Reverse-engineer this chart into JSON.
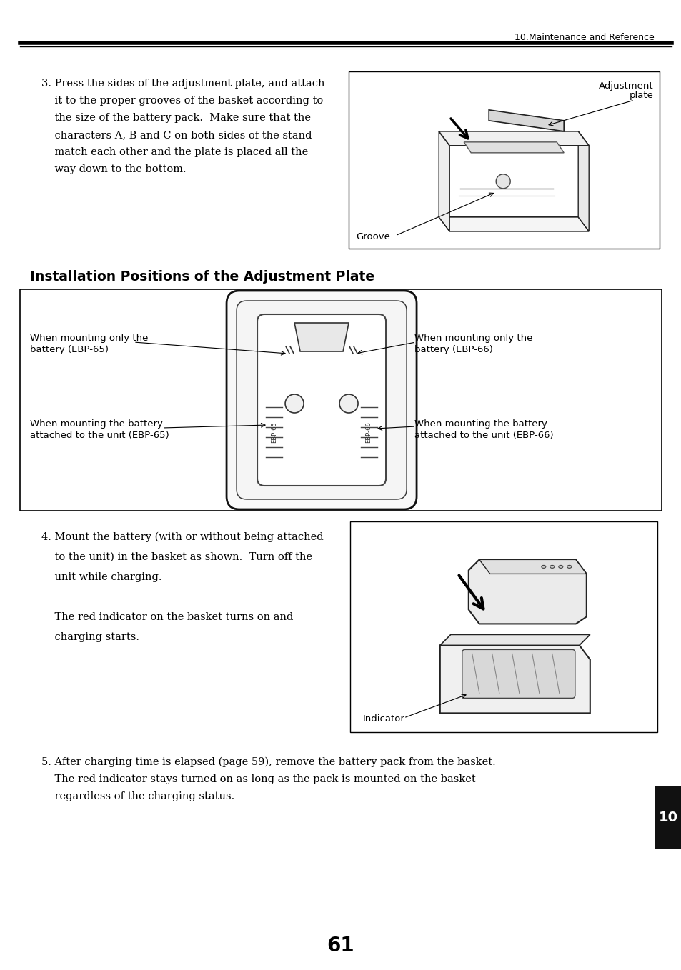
{
  "page_number": "61",
  "header_text": "10.Maintenance and Reference",
  "bg_color": "#ffffff",
  "text_color": "#000000",
  "section3_lines": [
    "3. Press the sides of the adjustment plate, and attach",
    "    it to the proper grooves of the basket according to",
    "    the size of the battery pack.  Make sure that the",
    "    characters A, B and C on both sides of the stand",
    "    match each other and the plate is placed all the",
    "    way down to the bottom."
  ],
  "section_heading": "Installation Positions of the Adjustment Plate",
  "section4_lines": [
    "4. Mount the battery (with or without being attached",
    "    to the unit) in the basket as shown.  Turn off the",
    "    unit while charging.",
    "",
    "    The red indicator on the basket turns on and",
    "    charging starts."
  ],
  "section5_lines": [
    "5. After charging time is elapsed (page 59), remove the battery pack from the basket.",
    "    The red indicator stays turned on as long as the pack is mounted on the basket",
    "    regardless of the charging status."
  ],
  "indicator_label": "Indicator",
  "groove_label": "Groove",
  "adjustment_plate_label1": "Adjustment",
  "adjustment_plate_label2": "plate",
  "tab_label": "10",
  "tab_color": "#111111",
  "lbl_when_only_65_1": "When mounting only the",
  "lbl_when_only_65_2": "battery (EBP-65)",
  "lbl_when_attached_65_1": "When mounting the battery",
  "lbl_when_attached_65_2": "attached to the unit (EBP-65)",
  "lbl_when_only_66_1": "When mounting only the",
  "lbl_when_only_66_2": "battery (EBP-66)",
  "lbl_when_attached_66_1": "When mounting the battery",
  "lbl_when_attached_66_2": "attached to the unit (EBP-66)"
}
